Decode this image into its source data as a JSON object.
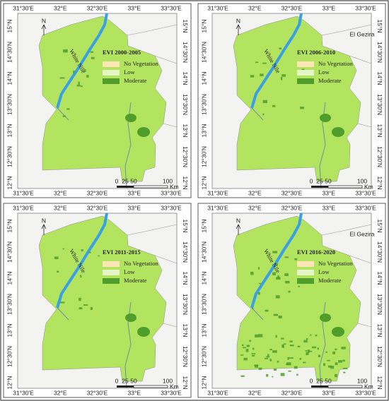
{
  "lon_labels": [
    "31°30'E",
    "32°E",
    "32°30'E",
    "33°E",
    "33°30'E"
  ],
  "lat_labels": [
    "15°N",
    "14°30'N",
    "14°N",
    "13°30'N",
    "13°N",
    "12°30'N",
    "12°N"
  ],
  "legend": [
    "No Vegetation",
    "Low",
    "Moderate"
  ],
  "river_label": "White Nile",
  "north_label": "N",
  "scale_labels": [
    "0",
    "25",
    "50",
    "100"
  ],
  "scale_unit": "Km",
  "panels": [
    {
      "title": "EVI 2000-2005"
    },
    {
      "title": "EVI 2006-2010",
      "region_label": "El Gezira"
    },
    {
      "title": "EVI 2011-2015"
    },
    {
      "title": "EVI 2016-2020",
      "region_label": "El Gezira"
    }
  ]
}
